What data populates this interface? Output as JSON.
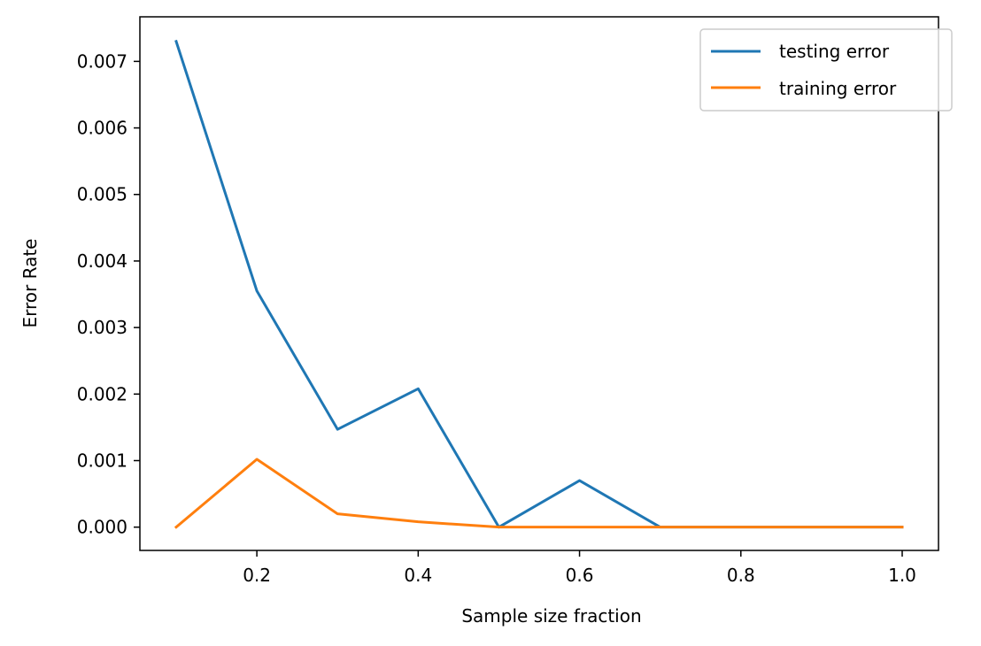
{
  "chart_data": {
    "type": "line",
    "title": "",
    "xlabel": "Sample size fraction",
    "ylabel": "Error Rate",
    "xlim": [
      0.055,
      1.045
    ],
    "ylim": [
      -0.00035,
      0.00767
    ],
    "xticks": [
      0.2,
      0.4,
      0.6,
      0.8,
      1.0
    ],
    "xtick_labels": [
      "0.2",
      "0.4",
      "0.6",
      "0.8",
      "1.0"
    ],
    "yticks": [
      0.0,
      0.001,
      0.002,
      0.003,
      0.004,
      0.005,
      0.006,
      0.007
    ],
    "ytick_labels": [
      "0.000",
      "0.001",
      "0.002",
      "0.003",
      "0.004",
      "0.005",
      "0.006",
      "0.007"
    ],
    "grid": false,
    "legend_position": "top-right",
    "x": [
      0.1,
      0.2,
      0.3,
      0.4,
      0.5,
      0.6,
      0.7,
      0.8,
      0.9,
      1.0
    ],
    "series": [
      {
        "name": "testing error",
        "color": "#1f77b4",
        "values": [
          0.0073,
          0.00355,
          0.00147,
          0.00208,
          0.0,
          0.0007,
          0.0,
          0.0,
          0.0,
          0.0
        ]
      },
      {
        "name": "training error",
        "color": "#ff7f0e",
        "values": [
          0.0,
          0.00102,
          0.0002,
          8e-05,
          0.0,
          0.0,
          0.0,
          0.0,
          0.0,
          0.0
        ]
      }
    ]
  }
}
